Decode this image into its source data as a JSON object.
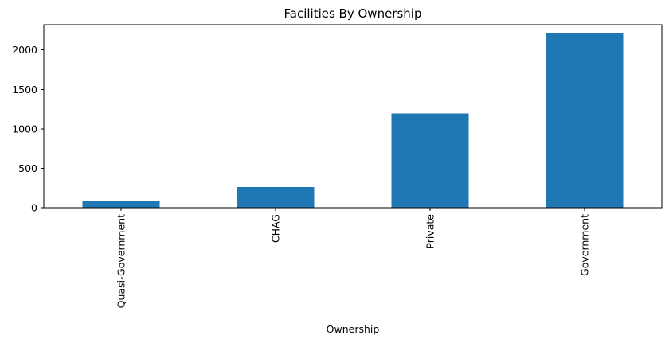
{
  "chart_data": {
    "type": "bar",
    "title": "Facilities By Ownership",
    "xlabel": "Ownership",
    "ylabel": "",
    "categories": [
      "Quasi-Government",
      "CHAG",
      "Private",
      "Government"
    ],
    "values": [
      90,
      260,
      1195,
      2210
    ],
    "ylim": [
      0,
      2320
    ],
    "yticks": [
      0,
      500,
      1000,
      1500,
      2000
    ],
    "ytick_labels": [
      "0",
      "500",
      "1000",
      "1500",
      "2000"
    ],
    "bar_color": "#1f77b4",
    "grid": false,
    "legend": "none",
    "xtick_rotation": "vertical"
  }
}
